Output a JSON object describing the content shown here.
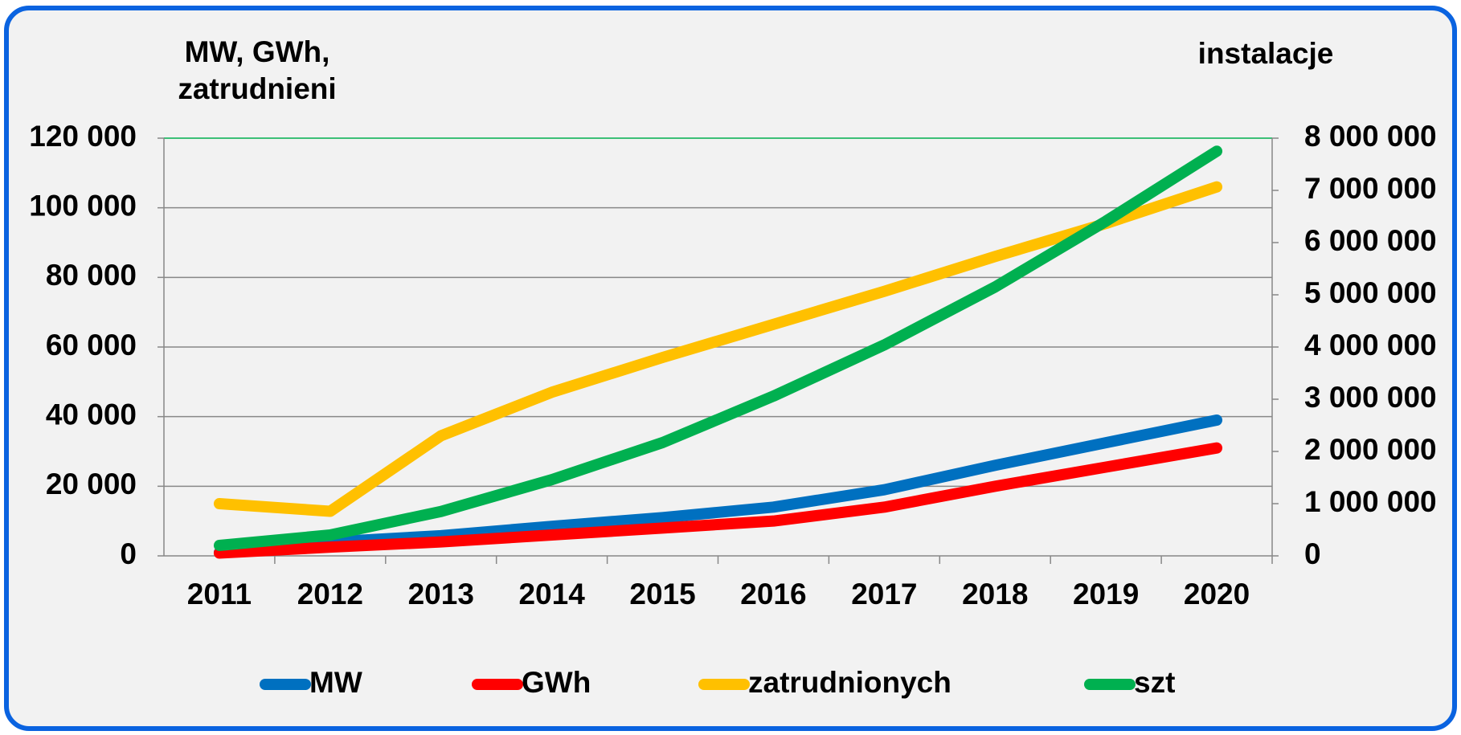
{
  "chart_data": {
    "type": "line",
    "y_label": [
      "MW, GWh,",
      "zatrudnieni"
    ],
    "y2_label": "instalacje",
    "categories": [
      "2011",
      "2012",
      "2013",
      "2014",
      "2015",
      "2016",
      "2017",
      "2018",
      "2019",
      "2020"
    ],
    "series": [
      {
        "name": "MW",
        "color": "#0070c0",
        "values": [
          1000,
          4000,
          5800,
          8500,
          11000,
          14000,
          19000,
          26000,
          32500,
          39000
        ]
      },
      {
        "name": "GWh",
        "color": "#ff0000",
        "values": [
          800,
          2500,
          4000,
          6000,
          8000,
          10000,
          14000,
          20000,
          25500,
          31000
        ]
      },
      {
        "name": "zatrudnionych",
        "color": "#ffc000",
        "values": [
          15000,
          12800,
          34500,
          47000,
          57000,
          66500,
          76000,
          86000,
          95500,
          106000
        ]
      },
      {
        "name": "szt",
        "color": "#00b050",
        "axis": "y2",
        "values": [
          200000,
          400000,
          850000,
          1460000,
          2170000,
          3060000,
          4040000,
          5150000,
          6410000,
          7750000
        ]
      }
    ],
    "ylim": [
      0,
      120000
    ],
    "yticks": [
      0,
      {
        "value": 20000,
        "label": "20 000"
      },
      {
        "value": 40000,
        "label": "40 000"
      },
      {
        "value": 60000,
        "label": "60 000"
      },
      {
        "value": 80000,
        "label": "80 000"
      },
      {
        "value": 100000,
        "label": "100 000"
      },
      {
        "value": 120000,
        "label": "120 000"
      }
    ],
    "y2lim": [
      0,
      8000000
    ],
    "y2ticks": [
      0,
      {
        "value": 1000000,
        "label": "1 000 000"
      },
      {
        "value": 2000000,
        "label": "2 000 000"
      },
      {
        "value": 3000000,
        "label": "3 000 000"
      },
      {
        "value": 4000000,
        "label": "4 000 000"
      },
      {
        "value": 5000000,
        "label": "5 000 000"
      },
      {
        "value": 6000000,
        "label": "6 000 000"
      },
      {
        "value": 7000000,
        "label": "7 000 000"
      },
      {
        "value": 8000000,
        "label": "8 000 000"
      }
    ],
    "grid": true,
    "legend": "bottom"
  }
}
